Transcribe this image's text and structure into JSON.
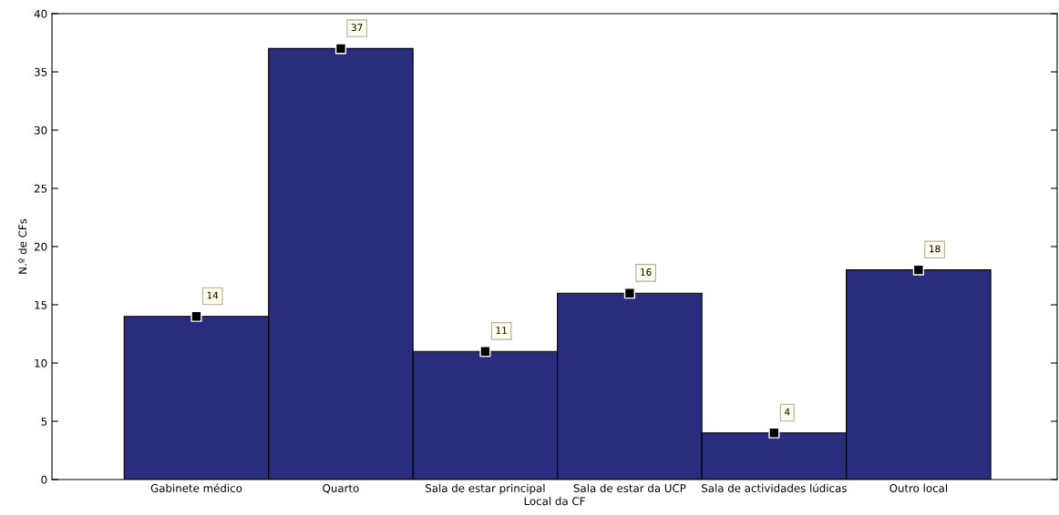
{
  "chart_data": {
    "type": "bar",
    "xlabel": "Local da CF",
    "ylabel": "N.º de CFs",
    "categories": [
      "Gabinete médico",
      "Quarto",
      "Sala de estar principal",
      "Sala de estar da UCP",
      "Sala de actividades lúdicas",
      "Outro local"
    ],
    "series": [
      {
        "color": "#2a2c7c",
        "values": [
          14,
          37,
          11,
          16,
          4,
          18
        ]
      },
      {
        "type": "scatter",
        "color": "#000000",
        "marker": "square",
        "x": [
          "Gabinete médico",
          "Quarto",
          "Sala de estar principal",
          "Sala de estar da UCP",
          "Sala de actividades lúdicas",
          "Outro local"
        ],
        "values": [
          14,
          37,
          11,
          16,
          4,
          18
        ],
        "value_labels": [
          "14",
          "37",
          "11",
          "16",
          "4",
          "18"
        ]
      }
    ],
    "ylim": [
      0,
      40
    ],
    "yticks": [
      0,
      5,
      10,
      15,
      20,
      25,
      30,
      35,
      40
    ],
    "grid": false
  }
}
